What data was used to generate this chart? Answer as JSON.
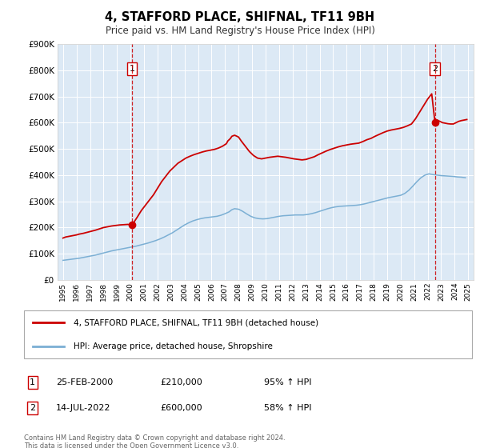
{
  "title": "4, STAFFORD PLACE, SHIFNAL, TF11 9BH",
  "subtitle": "Price paid vs. HM Land Registry's House Price Index (HPI)",
  "plot_bg_color": "#dce9f5",
  "red_line_color": "#cc0000",
  "blue_line_color": "#7bafd4",
  "dashed_line_color": "#cc0000",
  "marker1_x": 2000.12,
  "marker1_y": 210000,
  "marker2_x": 2022.54,
  "marker2_y": 600000,
  "ylim": [
    0,
    900000
  ],
  "xlim": [
    1994.6,
    2025.4
  ],
  "yticks": [
    0,
    100000,
    200000,
    300000,
    400000,
    500000,
    600000,
    700000,
    800000,
    900000
  ],
  "ytick_labels": [
    "£0",
    "£100K",
    "£200K",
    "£300K",
    "£400K",
    "£500K",
    "£600K",
    "£700K",
    "£800K",
    "£900K"
  ],
  "xticks": [
    1995,
    1996,
    1997,
    1998,
    1999,
    2000,
    2001,
    2002,
    2003,
    2004,
    2005,
    2006,
    2007,
    2008,
    2009,
    2010,
    2011,
    2012,
    2013,
    2014,
    2015,
    2016,
    2017,
    2018,
    2019,
    2020,
    2021,
    2022,
    2023,
    2024,
    2025
  ],
  "legend_label_red": "4, STAFFORD PLACE, SHIFNAL, TF11 9BH (detached house)",
  "legend_label_blue": "HPI: Average price, detached house, Shropshire",
  "annotation1_label": "1",
  "annotation1_date": "25-FEB-2000",
  "annotation1_price": "£210,000",
  "annotation1_hpi": "95% ↑ HPI",
  "annotation2_label": "2",
  "annotation2_date": "14-JUL-2022",
  "annotation2_price": "£600,000",
  "annotation2_hpi": "58% ↑ HPI",
  "footer_text": "Contains HM Land Registry data © Crown copyright and database right 2024.\nThis data is licensed under the Open Government Licence v3.0.",
  "red_x": [
    1995.0,
    1995.1,
    1995.2,
    1995.4,
    1995.6,
    1995.8,
    1996.0,
    1996.2,
    1996.5,
    1996.8,
    1997.1,
    1997.4,
    1997.7,
    1998.0,
    1998.3,
    1998.6,
    1998.9,
    1999.2,
    1999.5,
    1999.8,
    2000.12,
    2000.5,
    2000.8,
    2001.1,
    2001.4,
    2001.7,
    2002.0,
    2002.3,
    2002.6,
    2002.9,
    2003.2,
    2003.5,
    2003.8,
    2004.1,
    2004.4,
    2004.7,
    2005.0,
    2005.3,
    2005.6,
    2005.9,
    2006.2,
    2006.5,
    2006.8,
    2007.1,
    2007.2,
    2007.4,
    2007.5,
    2007.7,
    2007.8,
    2008.0,
    2008.2,
    2008.5,
    2008.8,
    2009.1,
    2009.4,
    2009.7,
    2010.0,
    2010.3,
    2010.6,
    2010.9,
    2011.2,
    2011.5,
    2011.8,
    2012.1,
    2012.4,
    2012.7,
    2013.0,
    2013.3,
    2013.6,
    2013.9,
    2014.2,
    2014.5,
    2014.8,
    2015.1,
    2015.4,
    2015.7,
    2016.0,
    2016.3,
    2016.6,
    2016.9,
    2017.2,
    2017.5,
    2017.8,
    2018.1,
    2018.4,
    2018.7,
    2019.0,
    2019.3,
    2019.6,
    2019.9,
    2020.2,
    2020.5,
    2020.8,
    2021.1,
    2021.4,
    2021.7,
    2022.0,
    2022.3,
    2022.54,
    2022.7,
    2022.9,
    2023.1,
    2023.3,
    2023.5,
    2023.7,
    2023.9,
    2024.1,
    2024.3,
    2024.5,
    2024.7,
    2024.9
  ],
  "red_y": [
    160000,
    162000,
    164000,
    166000,
    168000,
    170000,
    172000,
    175000,
    178000,
    182000,
    186000,
    190000,
    195000,
    200000,
    203000,
    206000,
    208000,
    210000,
    211000,
    212000,
    210000,
    240000,
    265000,
    285000,
    305000,
    325000,
    350000,
    375000,
    395000,
    415000,
    430000,
    445000,
    455000,
    465000,
    472000,
    478000,
    483000,
    488000,
    492000,
    495000,
    498000,
    503000,
    510000,
    520000,
    530000,
    540000,
    548000,
    552000,
    550000,
    545000,
    530000,
    510000,
    490000,
    475000,
    465000,
    462000,
    465000,
    468000,
    470000,
    472000,
    470000,
    468000,
    465000,
    462000,
    460000,
    458000,
    460000,
    465000,
    470000,
    478000,
    485000,
    492000,
    498000,
    503000,
    508000,
    512000,
    515000,
    518000,
    520000,
    522000,
    528000,
    535000,
    540000,
    548000,
    555000,
    562000,
    568000,
    572000,
    575000,
    578000,
    582000,
    588000,
    595000,
    615000,
    640000,
    665000,
    690000,
    710000,
    600000,
    610000,
    605000,
    600000,
    598000,
    596000,
    595000,
    595000,
    600000,
    605000,
    608000,
    610000,
    612000
  ],
  "blue_x": [
    1995.0,
    1995.3,
    1995.6,
    1995.9,
    1996.2,
    1996.5,
    1996.8,
    1997.1,
    1997.4,
    1997.7,
    1998.0,
    1998.3,
    1998.6,
    1998.9,
    1999.2,
    1999.5,
    1999.8,
    2000.1,
    2000.4,
    2000.7,
    2001.0,
    2001.3,
    2001.6,
    2001.9,
    2002.2,
    2002.5,
    2002.8,
    2003.1,
    2003.4,
    2003.7,
    2004.0,
    2004.3,
    2004.6,
    2004.9,
    2005.2,
    2005.5,
    2005.8,
    2006.1,
    2006.4,
    2006.7,
    2007.0,
    2007.3,
    2007.5,
    2007.7,
    2008.0,
    2008.3,
    2008.6,
    2008.9,
    2009.2,
    2009.5,
    2009.8,
    2010.1,
    2010.4,
    2010.7,
    2011.0,
    2011.3,
    2011.6,
    2011.9,
    2012.2,
    2012.5,
    2012.8,
    2013.1,
    2013.4,
    2013.7,
    2014.0,
    2014.3,
    2014.6,
    2014.9,
    2015.2,
    2015.5,
    2015.8,
    2016.1,
    2016.4,
    2016.7,
    2017.0,
    2017.3,
    2017.6,
    2017.9,
    2018.2,
    2018.5,
    2018.8,
    2019.1,
    2019.4,
    2019.7,
    2020.0,
    2020.3,
    2020.6,
    2020.9,
    2021.2,
    2021.5,
    2021.8,
    2022.1,
    2022.4,
    2022.7,
    2023.0,
    2023.3,
    2023.6,
    2023.9,
    2024.2,
    2024.5,
    2024.8
  ],
  "blue_y": [
    75000,
    77000,
    79000,
    81000,
    83000,
    86000,
    89000,
    92000,
    95000,
    99000,
    103000,
    107000,
    111000,
    114000,
    117000,
    120000,
    123000,
    126000,
    129000,
    133000,
    137000,
    141000,
    146000,
    151000,
    157000,
    164000,
    172000,
    180000,
    190000,
    200000,
    210000,
    218000,
    225000,
    230000,
    234000,
    237000,
    239000,
    241000,
    243000,
    247000,
    253000,
    260000,
    268000,
    272000,
    270000,
    262000,
    252000,
    243000,
    237000,
    234000,
    233000,
    234000,
    237000,
    240000,
    243000,
    245000,
    246000,
    247000,
    248000,
    248000,
    248000,
    250000,
    253000,
    257000,
    262000,
    267000,
    272000,
    276000,
    279000,
    281000,
    282000,
    283000,
    284000,
    285000,
    287000,
    290000,
    294000,
    298000,
    302000,
    306000,
    310000,
    314000,
    317000,
    320000,
    323000,
    330000,
    342000,
    358000,
    375000,
    390000,
    400000,
    405000,
    402000,
    400000,
    398000,
    397000,
    396000,
    395000,
    393000,
    392000,
    390000
  ]
}
